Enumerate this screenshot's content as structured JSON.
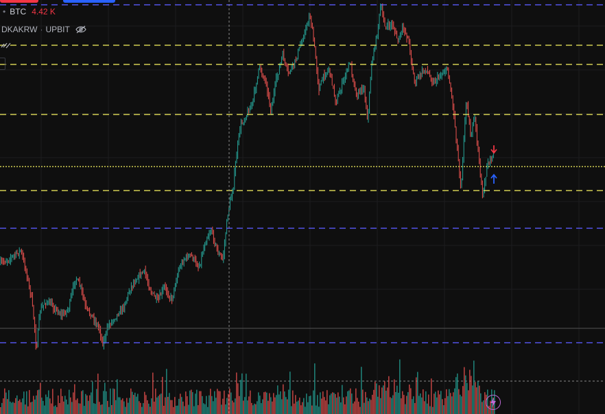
{
  "legend": {
    "symbol_prefix": "•",
    "symbol": "BTC",
    "value": "4.42 K",
    "pair": "DKAKRW",
    "separator": "·",
    "exchange": "UPBIT",
    "eye_icon": "eye-crossed-icon",
    "chain_icon": "link-icon"
  },
  "colors": {
    "background": "#0f0f0f",
    "up": "#26a69a",
    "down": "#ef5350",
    "yellow_level": "#e8e35a",
    "blue_level": "#5b5bff",
    "crosshair": "#8a8a8a",
    "accent_purple": "#c06ad8"
  },
  "indicators": {
    "sell_arrow": "arrow-down-icon",
    "buy_arrow": "arrow-up-icon",
    "bolt_icon": "lightning-icon"
  },
  "chart_data": {
    "type": "candlestick",
    "horizontal_levels": [
      {
        "style": "dashed",
        "color": "blue"
      },
      {
        "style": "dashed",
        "color": "yellow"
      },
      {
        "style": "dashed",
        "color": "yellow"
      },
      {
        "style": "dashed",
        "color": "yellow"
      },
      {
        "style": "dotted",
        "color": "yellow"
      },
      {
        "style": "dashed",
        "color": "yellow"
      },
      {
        "style": "dashed",
        "color": "blue"
      },
      {
        "style": "dashed",
        "color": "blue"
      }
    ],
    "grid": true,
    "volume_pane": true
  }
}
